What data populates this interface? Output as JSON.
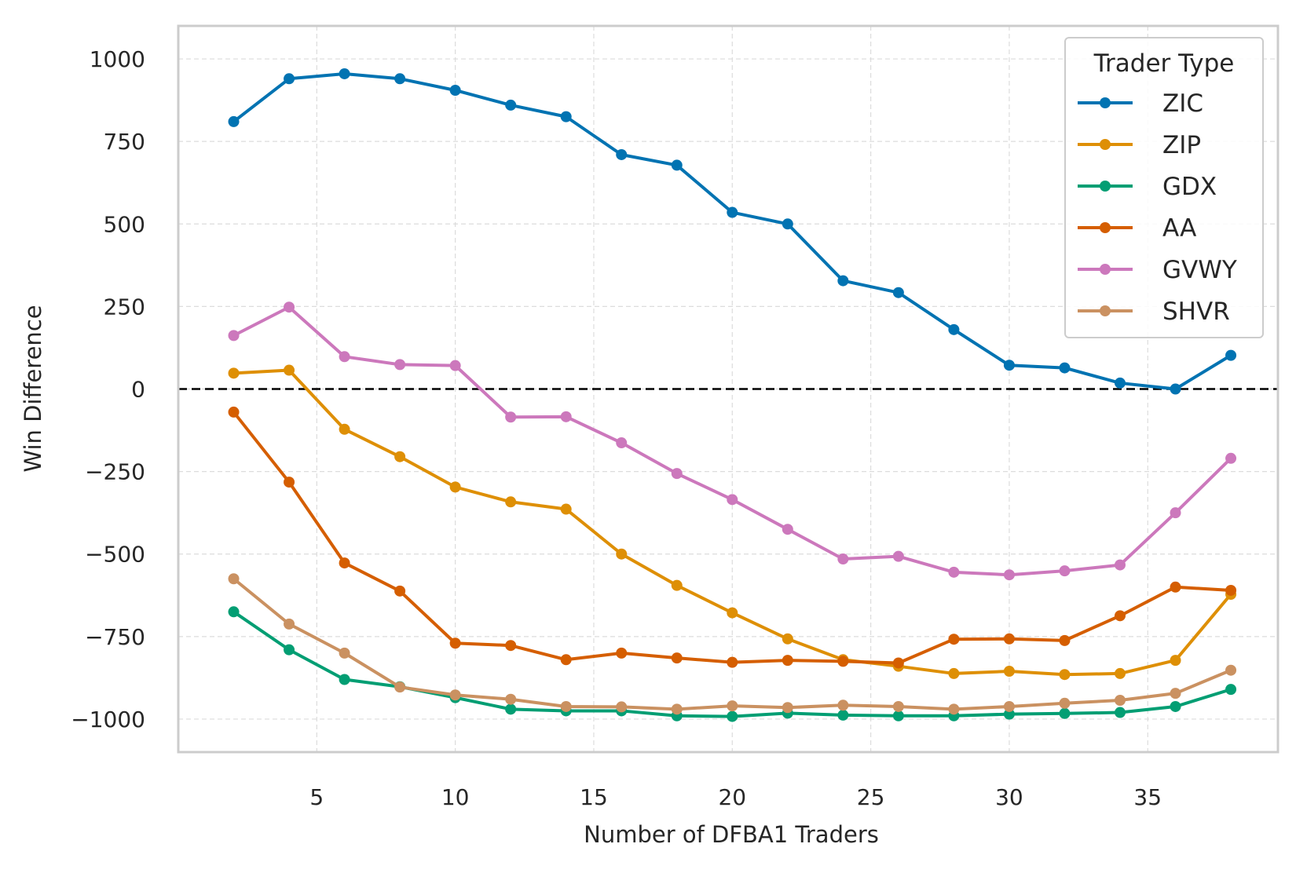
{
  "chart_data": {
    "type": "line",
    "title": "",
    "xlabel": "Number of DFBA1 Traders",
    "ylabel": "Win Difference",
    "xlim": [
      0,
      39.7
    ],
    "ylim": [
      -1100,
      1100
    ],
    "xticks": [
      5,
      10,
      15,
      20,
      25,
      30,
      35
    ],
    "yticks": [
      -1000,
      -750,
      -500,
      -250,
      0,
      250,
      500,
      750,
      1000
    ],
    "ytick_labels": [
      "−1000",
      "−750",
      "−500",
      "−250",
      "0",
      "250",
      "500",
      "750",
      "1000"
    ],
    "grid": true,
    "reference_line": {
      "y": 0,
      "style": "dashed",
      "color": "#000000"
    },
    "legend": {
      "title": "Trader Type",
      "placement": "top-right"
    },
    "x": [
      2,
      4,
      6,
      8,
      10,
      12,
      14,
      16,
      18,
      20,
      22,
      24,
      26,
      28,
      30,
      32,
      34,
      36,
      38
    ],
    "series": [
      {
        "name": "ZIC",
        "color": "#0173b2",
        "values": [
          810,
          940,
          955,
          940,
          905,
          860,
          825,
          710,
          678,
          535,
          500,
          328,
          292,
          180,
          72,
          64,
          18,
          0,
          102
        ]
      },
      {
        "name": "ZIP",
        "color": "#de8f05",
        "values": [
          48,
          57,
          -122,
          -205,
          -297,
          -342,
          -364,
          -500,
          -595,
          -678,
          -757,
          -820,
          -840,
          -862,
          -855,
          -865,
          -862,
          -822,
          -622
        ]
      },
      {
        "name": "GDX",
        "color": "#029e73",
        "values": [
          -675,
          -790,
          -880,
          -902,
          -935,
          -970,
          -975,
          -975,
          -990,
          -992,
          -982,
          -988,
          -990,
          -990,
          -985,
          -983,
          -980,
          -962,
          -910
        ]
      },
      {
        "name": "AA",
        "color": "#d55e00",
        "values": [
          -70,
          -282,
          -527,
          -612,
          -770,
          -777,
          -820,
          -800,
          -815,
          -828,
          -822,
          -825,
          -830,
          -758,
          -757,
          -762,
          -687,
          -600,
          -610
        ]
      },
      {
        "name": "GVWY",
        "color": "#cc78bc",
        "values": [
          162,
          248,
          98,
          74,
          71,
          -85,
          -84,
          -163,
          -256,
          -335,
          -425,
          -515,
          -507,
          -555,
          -563,
          -551,
          -533,
          -375,
          -210
        ]
      },
      {
        "name": "SHVR",
        "color": "#ca9161",
        "values": [
          -575,
          -712,
          -800,
          -903,
          -927,
          -940,
          -962,
          -963,
          -970,
          -960,
          -965,
          -958,
          -962,
          -970,
          -962,
          -952,
          -943,
          -922,
          -852
        ]
      }
    ]
  }
}
